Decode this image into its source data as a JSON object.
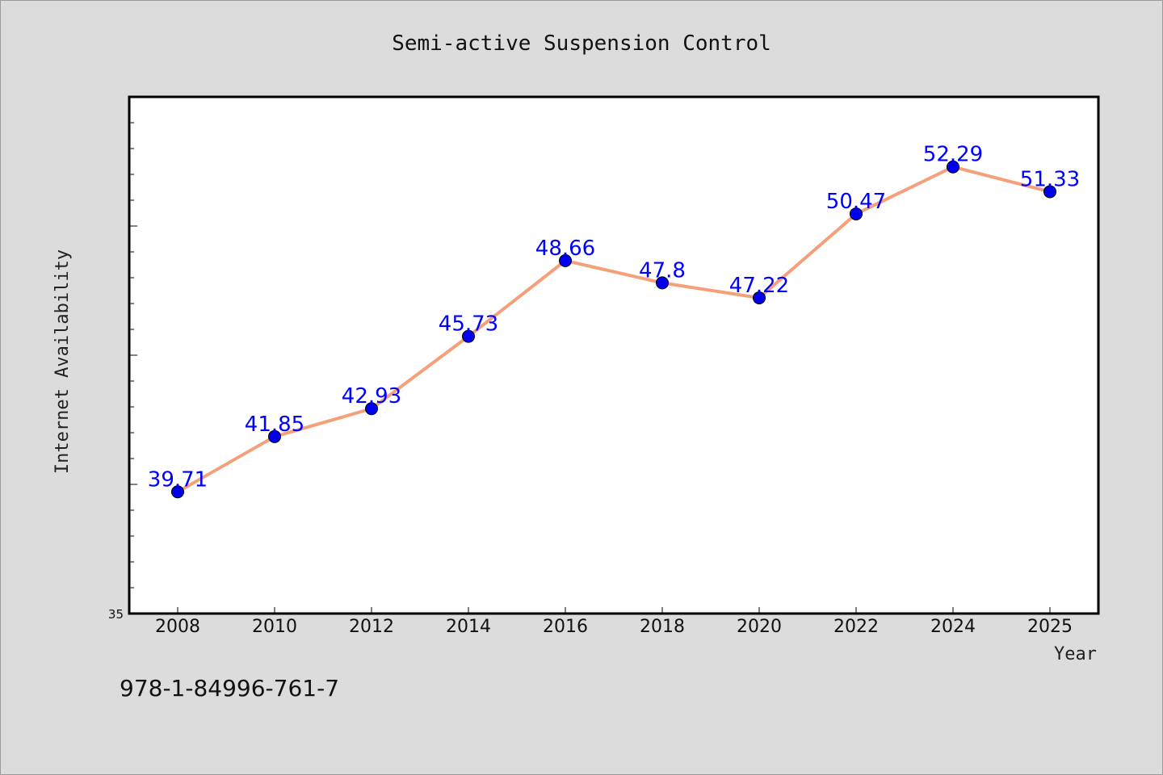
{
  "chart_data": {
    "type": "line",
    "title": "Semi-active Suspension Control",
    "xlabel": "Year",
    "ylabel": "Internet Availability",
    "categories": [
      "2008",
      "2010",
      "2012",
      "2014",
      "2016",
      "2018",
      "2020",
      "2022",
      "2024",
      "2025"
    ],
    "series": [
      {
        "values": [
          39.71,
          41.85,
          42.93,
          45.73,
          48.66,
          47.8,
          47.22,
          50.47,
          52.29,
          51.33
        ],
        "data_labels": [
          "39.71",
          "41.85",
          "42.93",
          "45.73",
          "48.66",
          "47.8",
          "47.22",
          "50.47",
          "52.29",
          "51.33"
        ]
      }
    ],
    "ylim": [
      35,
      55
    ],
    "y_tick_labels": [
      "35"
    ],
    "grid": false,
    "legend": "none",
    "colors": {
      "line": "#f4a07a",
      "marker": "#0000ee",
      "data_label": "#0000ff",
      "background": "#dcdcdc",
      "plot_background": "#ffffff"
    }
  },
  "footer": {
    "isbn": "978-1-84996-761-7"
  }
}
